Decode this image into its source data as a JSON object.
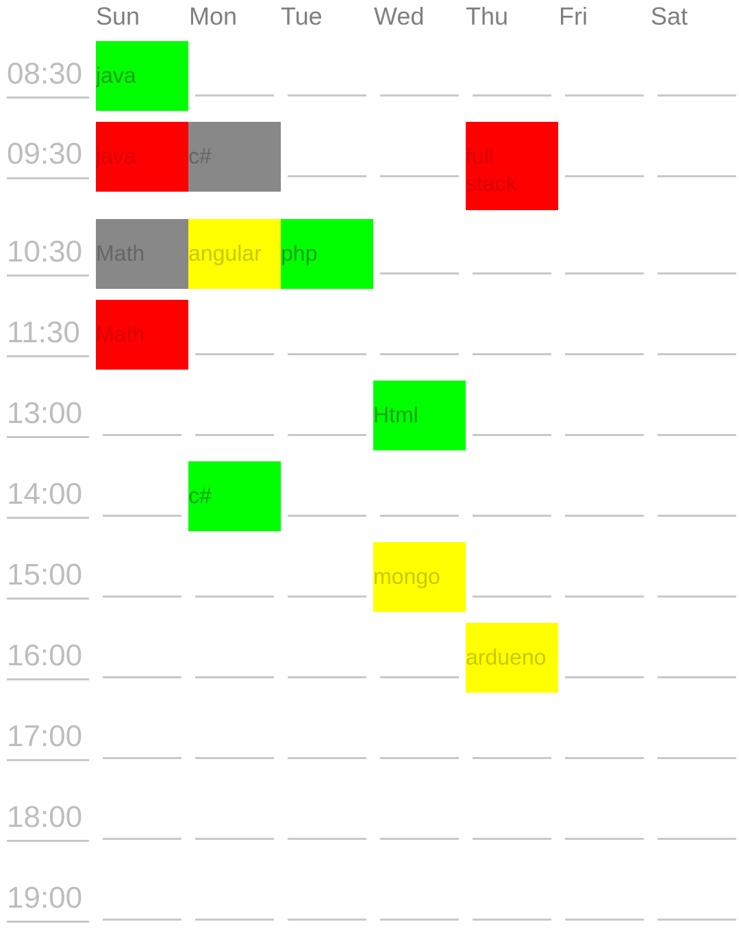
{
  "days": [
    "Sun",
    "Mon",
    "Tue",
    "Wed",
    "Thu",
    "Fri",
    "Sat"
  ],
  "times": [
    "08:30",
    "09:30",
    "10:30",
    "11:30",
    "13:00",
    "14:00",
    "15:00",
    "16:00",
    "17:00",
    "18:00",
    "19:00"
  ],
  "colors": {
    "green": "#00ff00",
    "red": "#ff0000",
    "gray": "#888888",
    "yellow": "#ffff00"
  },
  "events": [
    {
      "label": "java",
      "day": 0,
      "slot": 0,
      "span": 1,
      "color": "green"
    },
    {
      "label": "java",
      "day": 0,
      "slot": 1,
      "span": 1,
      "color": "red"
    },
    {
      "label": "c#",
      "day": 1,
      "slot": 1,
      "span": 1,
      "color": "gray"
    },
    {
      "label": "full stack",
      "day": 4,
      "slot": 1,
      "span": 1,
      "color": "red"
    },
    {
      "label": "Math",
      "day": 0,
      "slot": 2,
      "span": 1,
      "color": "gray"
    },
    {
      "label": "angular",
      "day": 1,
      "slot": 2,
      "span": 1,
      "color": "yellow"
    },
    {
      "label": "php",
      "day": 2,
      "slot": 2,
      "span": 1,
      "color": "green"
    },
    {
      "label": "Math",
      "day": 0,
      "slot": 3,
      "span": 1,
      "color": "red"
    },
    {
      "label": "Html",
      "day": 3,
      "slot": 4,
      "span": 1,
      "color": "green"
    },
    {
      "label": "c#",
      "day": 1,
      "slot": 5,
      "span": 1,
      "color": "green"
    },
    {
      "label": "mongo",
      "day": 3,
      "slot": 6,
      "span": 1,
      "color": "yellow"
    },
    {
      "label": "ardueno",
      "day": 4,
      "slot": 7,
      "span": 1,
      "color": "yellow"
    }
  ]
}
